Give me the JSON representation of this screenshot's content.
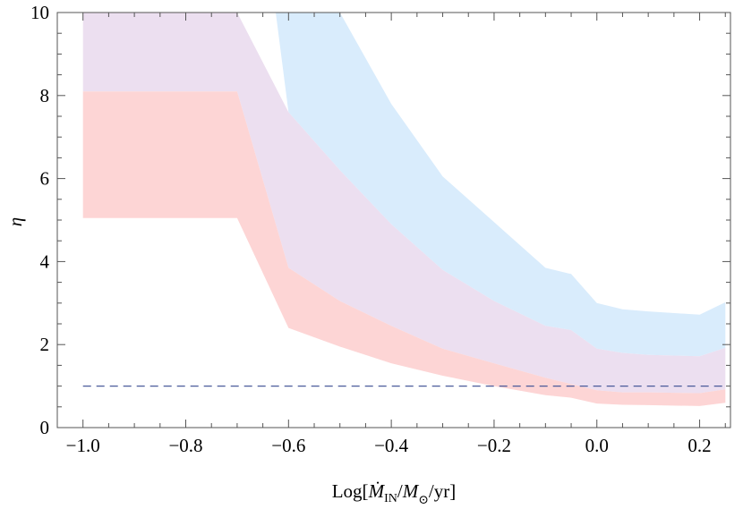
{
  "chart_data": {
    "type": "area",
    "title": "",
    "xlabel": "Log[Ṁ_IN/M_⊙/yr]",
    "ylabel": "η",
    "xlim": [
      -1.05,
      0.26
    ],
    "ylim": [
      0,
      10
    ],
    "x_ticks": [
      -1.0,
      -0.8,
      -0.6,
      -0.4,
      -0.2,
      0.0,
      0.2
    ],
    "x_tick_labels": [
      "−1.0",
      "−0.8",
      "−0.6",
      "−0.4",
      "−0.2",
      "0.0",
      "0.2"
    ],
    "y_ticks": [
      0,
      2,
      4,
      6,
      8,
      10
    ],
    "y_tick_labels": [
      "0",
      "2",
      "4",
      "6",
      "8",
      "10"
    ],
    "grid": false,
    "series": [
      {
        "color": "#d9ecfc",
        "x": [
          -0.625,
          -0.6,
          -0.5,
          -0.4,
          -0.3,
          -0.2,
          -0.1,
          -0.05,
          0.0,
          0.05,
          0.1,
          0.2,
          0.25
        ],
        "upper": [
          10,
          10,
          10,
          7.8,
          6.05,
          4.95,
          3.85,
          3.7,
          3.0,
          2.85,
          2.8,
          2.72,
          3.02
        ],
        "lower": [
          10,
          7.6,
          6.2,
          4.9,
          3.8,
          3.05,
          2.45,
          2.35,
          1.9,
          1.8,
          1.75,
          1.72,
          1.92
        ]
      },
      {
        "color": "#ecdff0",
        "x": [
          -1.0,
          -0.7,
          -0.6,
          -0.5,
          -0.4,
          -0.3,
          -0.2,
          -0.1,
          -0.05,
          0.0,
          0.05,
          0.1,
          0.2,
          0.25
        ],
        "upper": [
          10,
          10,
          7.6,
          6.2,
          4.9,
          3.8,
          3.05,
          2.45,
          2.35,
          1.9,
          1.8,
          1.75,
          1.72,
          1.92
        ],
        "lower": [
          8.1,
          8.1,
          3.85,
          3.05,
          2.45,
          1.9,
          1.55,
          1.2,
          1.05,
          0.9,
          0.85,
          0.85,
          0.83,
          0.92
        ]
      },
      {
        "color": "#fdd5d5",
        "x": [
          -1.0,
          -0.7,
          -0.6,
          -0.5,
          -0.4,
          -0.3,
          -0.2,
          -0.1,
          -0.05,
          0.0,
          0.05,
          0.1,
          0.2,
          0.25
        ],
        "upper": [
          8.1,
          8.1,
          3.85,
          3.05,
          2.45,
          1.9,
          1.55,
          1.2,
          1.05,
          0.9,
          0.85,
          0.85,
          0.83,
          0.92
        ],
        "lower": [
          5.05,
          5.05,
          2.4,
          1.95,
          1.55,
          1.25,
          1.0,
          0.78,
          0.72,
          0.58,
          0.55,
          0.54,
          0.52,
          0.6
        ]
      }
    ],
    "reference_line": {
      "y": 1.0,
      "style": "dashed",
      "color": "#4a5a9a"
    }
  }
}
